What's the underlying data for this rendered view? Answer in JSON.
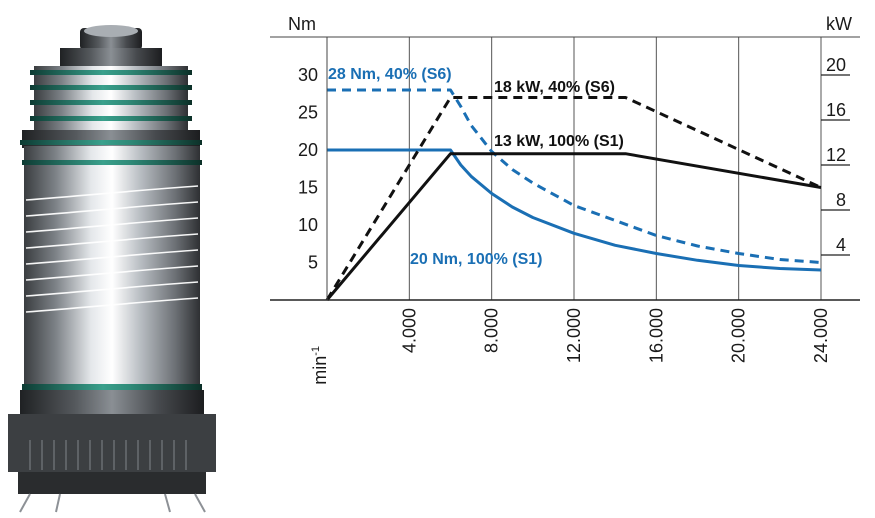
{
  "chart_data": {
    "type": "line",
    "title": "",
    "xlabel": "min-1",
    "ylabel_left": "Nm",
    "ylabel_right": "kW",
    "xlim": [
      0,
      24000
    ],
    "ylim_left": [
      0,
      32
    ],
    "ylim_right": [
      0,
      21.33
    ],
    "x_ticks": [
      4000,
      8000,
      12000,
      16000,
      20000,
      24000
    ],
    "x_tick_labels": [
      "4.000",
      "8.000",
      "12.000",
      "16.000",
      "20.000",
      "24.000"
    ],
    "y_left_ticks": [
      5,
      10,
      15,
      20,
      25,
      30
    ],
    "y_left_tick_labels": [
      "5",
      "10",
      "15",
      "20",
      "25",
      "30"
    ],
    "y_right_ticks": [
      4,
      8,
      12,
      16,
      20
    ],
    "y_right_tick_labels": [
      "4",
      "8",
      "12",
      "16",
      "20"
    ],
    "grid": "vertical",
    "colors": {
      "torque": "#1a6fb4",
      "power": "#111111"
    },
    "series": [
      {
        "name": "28 Nm, 40% (S6)",
        "quantity": "torque",
        "axis": "left",
        "style": "dashed",
        "color": "#1a6fb4",
        "x": [
          0,
          6000,
          6500,
          7000,
          8000,
          9000,
          10000,
          12000,
          14000,
          16000,
          18000,
          20000,
          22000,
          24000
        ],
        "y": [
          28,
          28,
          25.8,
          23.3,
          19.8,
          17.4,
          15.6,
          12.6,
          10.6,
          8.6,
          7.2,
          6.2,
          5.4,
          5.0
        ]
      },
      {
        "name": "20 Nm, 100% (S1)",
        "quantity": "torque",
        "axis": "left",
        "style": "solid",
        "color": "#1a6fb4",
        "x": [
          0,
          6000,
          6500,
          7000,
          8000,
          9000,
          10000,
          12000,
          14000,
          16000,
          18000,
          20000,
          22000,
          24000
        ],
        "y": [
          20,
          20,
          18.0,
          16.5,
          14.2,
          12.4,
          11.0,
          8.9,
          7.3,
          6.2,
          5.3,
          4.6,
          4.2,
          4.0
        ]
      },
      {
        "name": "18 kW, 40% (S6)",
        "quantity": "power",
        "axis": "right",
        "style": "dashed",
        "color": "#111111",
        "x": [
          0,
          6000,
          14500,
          24000
        ],
        "y": [
          0,
          18,
          18,
          10
        ]
      },
      {
        "name": "13 kW, 100% (S1)",
        "quantity": "power",
        "axis": "right",
        "style": "solid",
        "color": "#111111",
        "x": [
          0,
          6000,
          14500,
          24000
        ],
        "y": [
          0,
          13,
          13,
          10
        ]
      }
    ]
  }
}
